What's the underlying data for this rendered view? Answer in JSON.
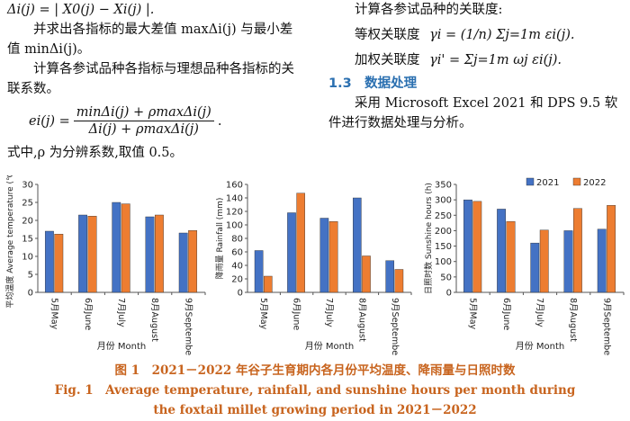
{
  "left_col": {
    "line1": "Δi(j) = | X0(j) − Xi(j) |.",
    "para1": "并求出各指标的最大差值 maxΔi(j) 与最小差值 minΔi(j)。",
    "para2": "计算各参试品种各指标与理想品种各指标的关联系数。",
    "formula_lhs": "ei(j) =",
    "formula_num": "minΔi(j) + ρmaxΔi(j)",
    "formula_den": "Δi(j) + ρmaxΔi(j)",
    "formula_end": ".",
    "para3": "式中,ρ 为分辨系数,取值 0.5。"
  },
  "right_col": {
    "para1": "计算各参试品种的关联度:",
    "eq1_label": "等权关联度",
    "eq1": "γi = (1/n) Σj=1m εi(j).",
    "eq2_label": "加权关联度",
    "eq2": "γi' = Σj=1m ωj εi(j).",
    "section_heading": "1.3　数据处理",
    "para2": "采用 Microsoft Excel 2021 和 DPS 9.5 软件进行数据处理与分析。"
  },
  "legend": {
    "s1": "2021",
    "s2": "2022"
  },
  "colors": {
    "s1": "#4472c4",
    "s2": "#ed7d31",
    "caption": "#c8641e",
    "heading": "#2a6fb0"
  },
  "chart_data": [
    {
      "type": "bar",
      "categories": [
        "5月May",
        "6月June",
        "7月July",
        "8月August",
        "9月September"
      ],
      "series": [
        {
          "name": "2021",
          "values": [
            17,
            21.5,
            25,
            21,
            16.5
          ]
        },
        {
          "name": "2022",
          "values": [
            16.2,
            21.2,
            24.6,
            21.5,
            17.2
          ]
        }
      ],
      "ylabel": "平均温度 Average temperature (℃)",
      "xlabel": "月份 Month",
      "ylim": [
        0,
        30
      ],
      "yticks": [
        0,
        5,
        10,
        15,
        20,
        25,
        30
      ]
    },
    {
      "type": "bar",
      "categories": [
        "5月May",
        "6月June",
        "7月July",
        "8月August",
        "9月September"
      ],
      "series": [
        {
          "name": "2021",
          "values": [
            62,
            118,
            110,
            140,
            47
          ]
        },
        {
          "name": "2022",
          "values": [
            24,
            147,
            105,
            54,
            34
          ]
        }
      ],
      "ylabel": "降雨量 Rainfall (mm)",
      "xlabel": "月份 Month",
      "ylim": [
        0,
        160
      ],
      "yticks": [
        0,
        20,
        40,
        60,
        80,
        100,
        120,
        140,
        160
      ]
    },
    {
      "type": "bar",
      "categories": [
        "5月May",
        "6月June",
        "7月July",
        "8月August",
        "9月September"
      ],
      "series": [
        {
          "name": "2021",
          "values": [
            300,
            270,
            160,
            200,
            205
          ]
        },
        {
          "name": "2022",
          "values": [
            295,
            230,
            202,
            272,
            282
          ]
        }
      ],
      "ylabel": "日照时数 Sunshine hours (h)",
      "xlabel": "月份 Month",
      "ylim": [
        0,
        350
      ],
      "yticks": [
        0,
        50,
        100,
        150,
        200,
        250,
        300,
        350
      ]
    }
  ],
  "caption": {
    "cn": "图 1　2021－2022 年谷子生育期内各月份平均温度、降雨量与日照时数",
    "en1": "Fig. 1　Average temperature, rainfall, and sunshine hours per month during",
    "en2": "the foxtail millet growing period in 2021－2022"
  }
}
